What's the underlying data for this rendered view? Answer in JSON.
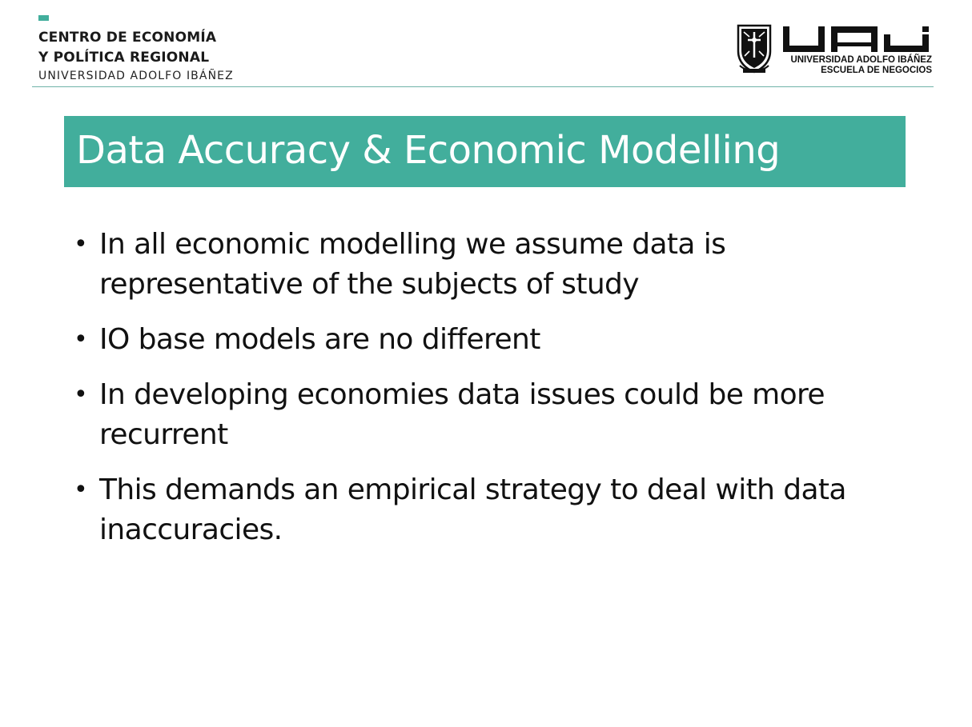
{
  "colors": {
    "accent": "#42ae9c",
    "rule": "#6fb3a8",
    "title_text": "#ffffff",
    "body_text": "#111111"
  },
  "header": {
    "org": {
      "line1": "CENTRO DE ECONOMÍA",
      "line2": "Y POLÍTICA REGIONAL",
      "line3": "UNIVERSIDAD ADOLFO IBÁÑEZ"
    },
    "uai": {
      "crest_icon": "university-crest-icon",
      "wordmark": "UAI",
      "caption_line1": "UNIVERSIDAD ADOLFO IBÁÑEZ",
      "caption_line2": "ESCUELA DE NEGOCIOS"
    }
  },
  "slide": {
    "title": "Data Accuracy & Economic Modelling",
    "bullet_symbol": "•",
    "bullets": [
      "In all economic modelling we assume data is representative of the subjects of study",
      "IO base models are no different",
      "In developing economies data issues could be more recurrent",
      "This demands an empirical strategy to deal with data inaccuracies."
    ]
  }
}
